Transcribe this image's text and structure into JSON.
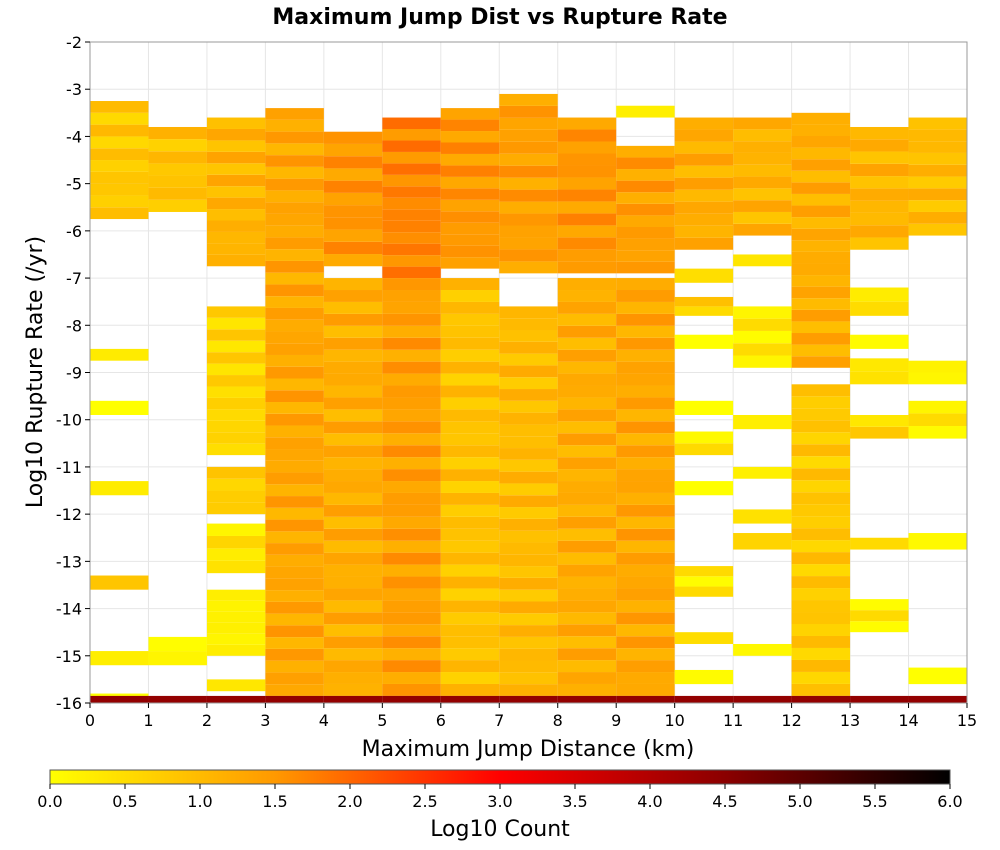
{
  "chart_data": {
    "type": "heatmap",
    "title": "Maximum Jump Dist vs Rupture Rate",
    "xlabel": "Maximum Jump Distance (km)",
    "ylabel": "Log10 Rupture Rate (/yr)",
    "x_range": [
      0,
      15
    ],
    "y_range": [
      -16,
      -2
    ],
    "x_bin_width": 1,
    "y_bin_width": 0.25,
    "x_ticks": [
      "0",
      "1",
      "2",
      "3",
      "4",
      "5",
      "6",
      "7",
      "8",
      "9",
      "10",
      "11",
      "12",
      "13",
      "14",
      "15"
    ],
    "y_ticks": [
      "-2",
      "-3",
      "-4",
      "-5",
      "-6",
      "-7",
      "-8",
      "-9",
      "-10",
      "-11",
      "-12",
      "-13",
      "-14",
      "-15",
      "-16"
    ],
    "grid": true,
    "colorbar": {
      "label": "Log10 Count",
      "range": [
        0,
        6
      ],
      "ticks": [
        "0.0",
        "0.5",
        "1.0",
        "1.5",
        "2.0",
        "2.5",
        "3.0",
        "3.5",
        "4.0",
        "4.5",
        "5.0",
        "5.5",
        "6.0"
      ],
      "colors": [
        "#ffff00",
        "#ff9900",
        "#ff0000",
        "#8b0000",
        "#000000"
      ]
    },
    "columns": [
      {
        "x": 0.5,
        "segments": [
          {
            "from": -5.75,
            "to": -3.25,
            "z": 0.8
          },
          {
            "from": -8.75,
            "to": -8.5,
            "z": 0.2
          },
          {
            "from": -9.9,
            "to": -9.6,
            "z": 0.2
          },
          {
            "from": -11.6,
            "to": -11.3,
            "z": 0.1
          },
          {
            "from": -13.6,
            "to": -13.3,
            "z": 0.6
          },
          {
            "from": -15.2,
            "to": -14.9,
            "z": 0.2
          },
          {
            "from": -16,
            "to": -15.8,
            "z": 0.1
          },
          {
            "from": -16,
            "to": -15.85,
            "z": 4.4
          }
        ]
      },
      {
        "x": 1.5,
        "segments": [
          {
            "from": -5.6,
            "to": -3.8,
            "z": 0.9
          },
          {
            "from": -15.2,
            "to": -14.6,
            "z": 0.2
          },
          {
            "from": -16,
            "to": -15.85,
            "z": 4.4
          }
        ]
      },
      {
        "x": 2.5,
        "segments": [
          {
            "from": -6.75,
            "to": -3.6,
            "z": 1.1
          },
          {
            "from": -10.75,
            "to": -7.6,
            "z": 0.6
          },
          {
            "from": -12.0,
            "to": -11.0,
            "z": 0.7
          },
          {
            "from": -13.25,
            "to": -12.2,
            "z": 0.4
          },
          {
            "from": -15.0,
            "to": -13.6,
            "z": 0.2
          },
          {
            "from": -15.75,
            "to": -15.5,
            "z": 0.2
          },
          {
            "from": -16,
            "to": -15.85,
            "z": 4.4
          }
        ]
      },
      {
        "x": 3.5,
        "segments": [
          {
            "from": -15.85,
            "to": -3.4,
            "z": 1.3
          },
          {
            "from": -16,
            "to": -15.85,
            "z": 4.4
          }
        ]
      },
      {
        "x": 4.5,
        "segments": [
          {
            "from": -6.75,
            "to": -3.9,
            "z": 1.5
          },
          {
            "from": -15.85,
            "to": -7.0,
            "z": 1.2
          },
          {
            "from": -16,
            "to": -15.85,
            "z": 4.4
          }
        ]
      },
      {
        "x": 5.5,
        "segments": [
          {
            "from": -7.0,
            "to": -3.6,
            "z": 1.7
          },
          {
            "from": -15.85,
            "to": -7.0,
            "z": 1.4
          },
          {
            "from": -16,
            "to": -15.85,
            "z": 4.4
          }
        ]
      },
      {
        "x": 6.5,
        "segments": [
          {
            "from": -6.8,
            "to": -3.4,
            "z": 1.5
          },
          {
            "from": -15.85,
            "to": -7.0,
            "z": 0.9
          },
          {
            "from": -16,
            "to": -15.85,
            "z": 4.4
          }
        ]
      },
      {
        "x": 7.5,
        "segments": [
          {
            "from": -6.9,
            "to": -3.1,
            "z": 1.4
          },
          {
            "from": -15.85,
            "to": -7.6,
            "z": 1.0
          },
          {
            "from": -16,
            "to": -15.85,
            "z": 4.4
          }
        ]
      },
      {
        "x": 8.5,
        "segments": [
          {
            "from": -6.9,
            "to": -3.6,
            "z": 1.5
          },
          {
            "from": -15.85,
            "to": -7.0,
            "z": 1.2
          },
          {
            "from": -16,
            "to": -15.85,
            "z": 4.4
          }
        ]
      },
      {
        "x": 9.5,
        "segments": [
          {
            "from": -3.6,
            "to": -3.35,
            "z": 0.1
          },
          {
            "from": -6.9,
            "to": -4.2,
            "z": 1.4
          },
          {
            "from": -15.85,
            "to": -7.0,
            "z": 1.3
          },
          {
            "from": -16,
            "to": -15.85,
            "z": 4.4
          }
        ]
      },
      {
        "x": 10.5,
        "segments": [
          {
            "from": -6.4,
            "to": -3.6,
            "z": 1.2
          },
          {
            "from": -7.1,
            "to": -6.8,
            "z": 0.3
          },
          {
            "from": -7.8,
            "to": -7.4,
            "z": 0.7
          },
          {
            "from": -8.5,
            "to": -8.2,
            "z": 0.2
          },
          {
            "from": -9.9,
            "to": -9.6,
            "z": 0.2
          },
          {
            "from": -10.75,
            "to": -10.25,
            "z": 0.3
          },
          {
            "from": -11.6,
            "to": -11.3,
            "z": 0.2
          },
          {
            "from": -13.75,
            "to": -13.1,
            "z": 0.3
          },
          {
            "from": -14.75,
            "to": -14.5,
            "z": 0.3
          },
          {
            "from": -15.6,
            "to": -15.3,
            "z": 0.3
          },
          {
            "from": -16,
            "to": -15.85,
            "z": 4.4
          }
        ]
      },
      {
        "x": 11.5,
        "segments": [
          {
            "from": -6.1,
            "to": -3.6,
            "z": 1.1
          },
          {
            "from": -6.75,
            "to": -6.5,
            "z": 0.3
          },
          {
            "from": -8.9,
            "to": -7.6,
            "z": 0.3
          },
          {
            "from": -10.2,
            "to": -9.9,
            "z": 0.2
          },
          {
            "from": -11.25,
            "to": -11.0,
            "z": 0.2
          },
          {
            "from": -12.2,
            "to": -11.9,
            "z": 0.2
          },
          {
            "from": -12.75,
            "to": -12.4,
            "z": 0.4
          },
          {
            "from": -15.0,
            "to": -14.75,
            "z": 0.3
          },
          {
            "from": -16,
            "to": -15.85,
            "z": 4.4
          }
        ]
      },
      {
        "x": 12.5,
        "segments": [
          {
            "from": -8.9,
            "to": -3.5,
            "z": 1.2
          },
          {
            "from": -15.85,
            "to": -9.25,
            "z": 0.8
          },
          {
            "from": -16,
            "to": -15.85,
            "z": 4.4
          }
        ]
      },
      {
        "x": 13.5,
        "segments": [
          {
            "from": -6.4,
            "to": -3.8,
            "z": 1.1
          },
          {
            "from": -7.8,
            "to": -7.2,
            "z": 0.5
          },
          {
            "from": -8.5,
            "to": -8.2,
            "z": 0.3
          },
          {
            "from": -9.25,
            "to": -8.7,
            "z": 0.3
          },
          {
            "from": -10.4,
            "to": -9.9,
            "z": 0.6
          },
          {
            "from": -12.75,
            "to": -12.5,
            "z": 0.3
          },
          {
            "from": -14.5,
            "to": -13.8,
            "z": 0.3
          },
          {
            "from": -16,
            "to": -15.85,
            "z": 4.4
          }
        ]
      },
      {
        "x": 14.5,
        "segments": [
          {
            "from": -6.1,
            "to": -3.6,
            "z": 1.0
          },
          {
            "from": -9.25,
            "to": -8.75,
            "z": 0.2
          },
          {
            "from": -10.4,
            "to": -9.6,
            "z": 0.3
          },
          {
            "from": -12.75,
            "to": -12.4,
            "z": 0.3
          },
          {
            "from": -15.6,
            "to": -15.25,
            "z": 0.2
          },
          {
            "from": -16,
            "to": -15.85,
            "z": 4.4
          }
        ]
      }
    ]
  }
}
